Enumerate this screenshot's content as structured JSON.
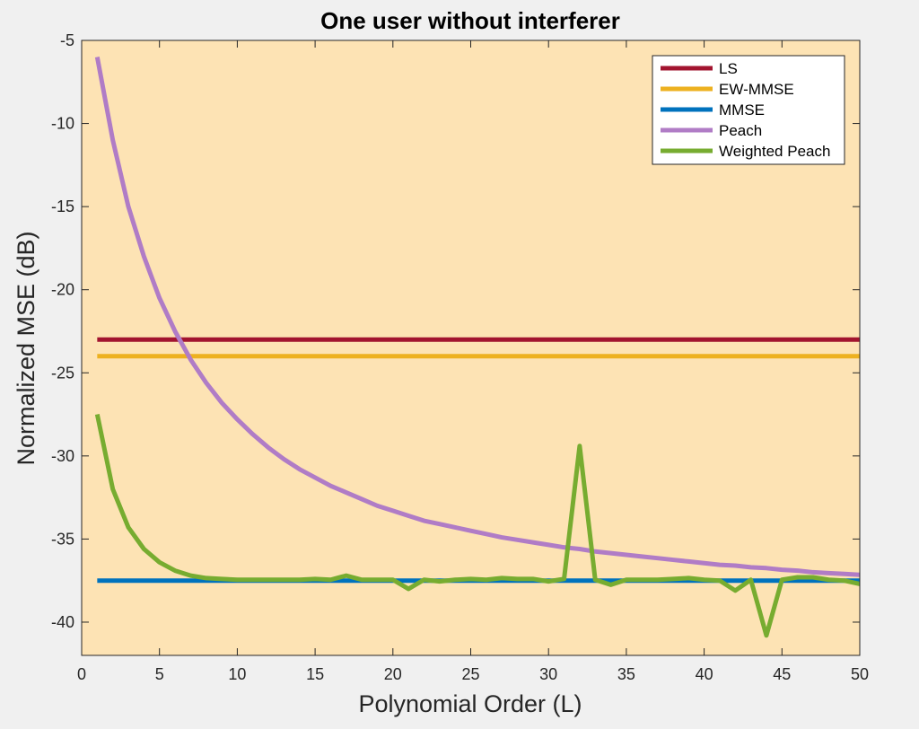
{
  "chart_data": {
    "type": "line",
    "title": "One user without interferer",
    "xlabel": "Polynomial Order (L)",
    "ylabel": "Normalized MSE (dB)",
    "xlim": [
      0,
      50
    ],
    "ylim": [
      -42,
      -5
    ],
    "xticks": [
      0,
      5,
      10,
      15,
      20,
      25,
      30,
      35,
      40,
      45,
      50
    ],
    "yticks": [
      -40,
      -35,
      -30,
      -25,
      -20,
      -15,
      -10,
      -5
    ],
    "grid": false,
    "legend_location": "top-right",
    "background_color": "#fde3b4",
    "series": [
      {
        "name": "LS",
        "color": "#a2142f",
        "x": [
          1,
          50
        ],
        "y": [
          -23,
          -23
        ]
      },
      {
        "name": "EW-MMSE",
        "color": "#edb120",
        "x": [
          1,
          50
        ],
        "y": [
          -24,
          -24
        ]
      },
      {
        "name": "MMSE",
        "color": "#0072bd",
        "x": [
          1,
          50
        ],
        "y": [
          -37.5,
          -37.5
        ]
      },
      {
        "name": "Peach",
        "color": "#b07cc6",
        "x": [
          1,
          2,
          3,
          4,
          5,
          6,
          7,
          8,
          9,
          10,
          11,
          12,
          13,
          14,
          15,
          16,
          17,
          18,
          19,
          20,
          21,
          22,
          23,
          24,
          25,
          26,
          27,
          28,
          29,
          30,
          31,
          32,
          33,
          34,
          35,
          36,
          37,
          38,
          39,
          40,
          41,
          42,
          43,
          44,
          45,
          46,
          47,
          48,
          49,
          50
        ],
        "y": [
          -6.0,
          -11.0,
          -15.0,
          -18.0,
          -20.5,
          -22.5,
          -24.2,
          -25.6,
          -26.8,
          -27.8,
          -28.7,
          -29.5,
          -30.2,
          -30.8,
          -31.3,
          -31.8,
          -32.2,
          -32.6,
          -33.0,
          -33.3,
          -33.6,
          -33.9,
          -34.1,
          -34.3,
          -34.5,
          -34.7,
          -34.9,
          -35.05,
          -35.2,
          -35.35,
          -35.5,
          -35.6,
          -35.75,
          -35.85,
          -35.95,
          -36.05,
          -36.15,
          -36.25,
          -36.35,
          -36.45,
          -36.55,
          -36.6,
          -36.7,
          -36.75,
          -36.85,
          -36.9,
          -37.0,
          -37.05,
          -37.1,
          -37.15
        ]
      },
      {
        "name": "Weighted Peach",
        "color": "#77ac30",
        "x": [
          1,
          2,
          3,
          4,
          5,
          6,
          7,
          8,
          9,
          10,
          11,
          12,
          13,
          14,
          15,
          16,
          17,
          18,
          19,
          20,
          21,
          22,
          23,
          24,
          25,
          26,
          27,
          28,
          29,
          30,
          31,
          32,
          33,
          34,
          35,
          36,
          37,
          38,
          39,
          40,
          41,
          42,
          43,
          44,
          45,
          46,
          47,
          48,
          49,
          50
        ],
        "y": [
          -27.5,
          -32.0,
          -34.3,
          -35.6,
          -36.4,
          -36.9,
          -37.2,
          -37.35,
          -37.4,
          -37.45,
          -37.45,
          -37.45,
          -37.45,
          -37.45,
          -37.4,
          -37.45,
          -37.2,
          -37.45,
          -37.45,
          -37.45,
          -38.0,
          -37.45,
          -37.55,
          -37.45,
          -37.4,
          -37.45,
          -37.35,
          -37.4,
          -37.4,
          -37.55,
          -37.4,
          -29.4,
          -37.45,
          -37.75,
          -37.45,
          -37.45,
          -37.45,
          -37.4,
          -37.35,
          -37.45,
          -37.5,
          -38.1,
          -37.45,
          -40.8,
          -37.45,
          -37.3,
          -37.3,
          -37.45,
          -37.5,
          -37.7
        ]
      }
    ]
  }
}
